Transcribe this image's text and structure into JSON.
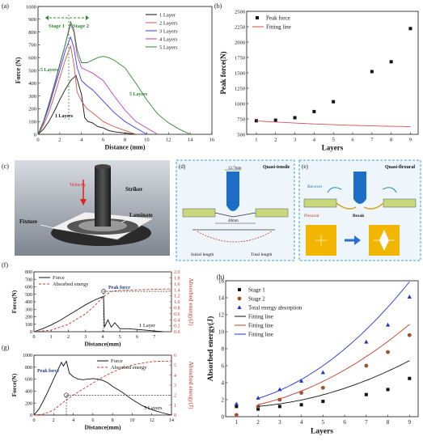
{
  "panel_labels": {
    "a": "(a)",
    "b": "(b)",
    "c": "(c)",
    "d": "(d)",
    "e": "(e)",
    "f": "(f)",
    "g": "(g)",
    "h": "(h)"
  },
  "chart_data": [
    {
      "id": "a",
      "type": "line",
      "xlabel": "Distance (mm)",
      "ylabel": "Force (N)",
      "xlim": [
        0,
        16
      ],
      "ylim": [
        0,
        1000
      ],
      "xticks": [
        0,
        2,
        4,
        6,
        8,
        10,
        12,
        14,
        16
      ],
      "yticks": [
        0,
        100,
        200,
        300,
        400,
        500,
        600,
        700,
        800,
        900,
        1000
      ],
      "legend_position": "top-right",
      "annotations": {
        "stage1": "Stage 1",
        "stage2": "Stage 2",
        "five_layers_left": "5 Layers",
        "five_layers_right": "5 Layers",
        "one_layer": "1 Layers"
      },
      "series": [
        {
          "name": "1 Layer",
          "color": "#111111",
          "x": [
            0,
            0.5,
            1,
            1.5,
            2,
            2.5,
            3,
            3.5,
            4,
            4.3,
            4.6,
            5,
            5.5,
            6,
            6.5,
            7,
            8,
            9
          ],
          "y": [
            0,
            40,
            100,
            180,
            270,
            350,
            420,
            460,
            310,
            130,
            100,
            90,
            60,
            50,
            30,
            20,
            10,
            0
          ]
        },
        {
          "name": "2 Layers",
          "color": "#d9534f",
          "x": [
            0,
            0.5,
            1,
            1.5,
            2,
            2.5,
            3,
            3.3,
            3.6,
            4,
            4.5,
            5,
            6,
            7,
            8,
            9
          ],
          "y": [
            0,
            70,
            170,
            300,
            440,
            580,
            690,
            550,
            330,
            260,
            200,
            170,
            100,
            60,
            30,
            0
          ]
        },
        {
          "name": "3 Layers",
          "color": "#3a3aff",
          "x": [
            0,
            0.5,
            1,
            1.5,
            2,
            2.5,
            3,
            3.3,
            3.6,
            4,
            4.5,
            5,
            6,
            7,
            8,
            9,
            10
          ],
          "y": [
            0,
            90,
            210,
            360,
            500,
            650,
            760,
            680,
            520,
            420,
            380,
            350,
            260,
            170,
            100,
            50,
            0
          ]
        },
        {
          "name": "4 Layers",
          "color": "#c040c0",
          "x": [
            0,
            0.5,
            1,
            1.5,
            2,
            2.5,
            3,
            3.3,
            3.6,
            4,
            4.5,
            5,
            6,
            7,
            8,
            9,
            10,
            11
          ],
          "y": [
            0,
            100,
            230,
            380,
            540,
            700,
            860,
            800,
            620,
            520,
            500,
            480,
            420,
            300,
            190,
            100,
            50,
            0
          ]
        },
        {
          "name": "5 Layers",
          "color": "#2a8a2a",
          "x": [
            0,
            0.5,
            1,
            1.5,
            2,
            2.5,
            3,
            3.3,
            3.6,
            4,
            4.5,
            5,
            5.5,
            6,
            6.5,
            7,
            8,
            9,
            10,
            11,
            12,
            13,
            14
          ],
          "y": [
            0,
            100,
            240,
            390,
            550,
            700,
            880,
            820,
            660,
            560,
            560,
            580,
            600,
            610,
            600,
            580,
            520,
            400,
            270,
            160,
            90,
            40,
            0
          ]
        }
      ]
    },
    {
      "id": "b",
      "type": "scatter",
      "xlabel": "Layers",
      "ylabel": "Peak force(N)",
      "xlim": [
        0.5,
        9.4
      ],
      "ylim": [
        500,
        2500
      ],
      "xticks": [
        1,
        2,
        3,
        4,
        5,
        6,
        7,
        8,
        9
      ],
      "yticks": [
        500,
        750,
        1000,
        1250,
        1500,
        1750,
        2000,
        2250,
        2500
      ],
      "legend_position": "top-left",
      "series": [
        {
          "name": "Peak force",
          "color": "#111111",
          "x": [
            1,
            2,
            3,
            4,
            5,
            7,
            8,
            9
          ],
          "y": [
            720,
            730,
            770,
            870,
            1030,
            1520,
            1680,
            2220
          ]
        },
        {
          "name": "Fitting line",
          "color": "#d9534f",
          "fit": [
            0.96,
            -21.1,
            738
          ]
        }
      ]
    },
    {
      "id": "f",
      "type": "line",
      "xlabel": "Distance(mm)",
      "ylabel": "Force(N)",
      "y2label": "Absorbed energy(J)",
      "xlim": [
        0,
        8
      ],
      "ylim": [
        0,
        800
      ],
      "y2lim": [
        0,
        2.0
      ],
      "xticks": [
        0,
        1,
        2,
        3,
        4,
        5,
        6,
        7
      ],
      "yticks": [
        0,
        100,
        200,
        300,
        400,
        500,
        600,
        700,
        800
      ],
      "y2ticks": [
        0.0,
        0.2,
        0.4,
        0.6,
        0.8,
        1.0,
        1.2,
        1.4,
        1.6,
        1.8,
        2.0
      ],
      "legend_position": "top-left",
      "annotations": {
        "peak": "Peak force",
        "layers": "1 Layer"
      },
      "series": [
        {
          "name": "Force",
          "color": "#111111",
          "x": [
            0,
            0.5,
            1,
            1.5,
            2,
            2.5,
            3,
            3.5,
            3.9,
            4.05,
            4.1,
            4.3,
            4.5,
            4.7,
            5,
            5.5,
            6,
            6.5,
            7,
            7.5
          ],
          "y": [
            0,
            40,
            90,
            150,
            220,
            290,
            360,
            420,
            460,
            470,
            60,
            160,
            60,
            120,
            40,
            40,
            30,
            20,
            10,
            0
          ]
        },
        {
          "name": "Absorbed energy",
          "color": "#c0392b",
          "axis": "y2",
          "x": [
            0,
            1,
            2,
            3,
            3.5,
            4,
            4.5,
            5,
            6,
            7,
            8
          ],
          "y": [
            0,
            0.05,
            0.25,
            0.6,
            0.85,
            1.15,
            1.35,
            1.38,
            1.4,
            1.42,
            1.43
          ]
        }
      ]
    },
    {
      "id": "g",
      "type": "line",
      "xlabel": "Distance(mm)",
      "ylabel": "Force(N)",
      "y2label": "Absorbed energy(J)",
      "xlim": [
        0,
        14
      ],
      "ylim": [
        0,
        1000
      ],
      "y2lim": [
        0,
        6
      ],
      "xticks": [
        0,
        2,
        4,
        6,
        8,
        10,
        12,
        14
      ],
      "yticks": [
        0,
        200,
        400,
        600,
        800,
        1000
      ],
      "y2ticks": [
        0,
        1,
        2,
        3,
        4,
        5,
        6
      ],
      "legend_position": "top-right",
      "annotations": {
        "peak": "Peak force",
        "layers": "5 Layers"
      },
      "series": [
        {
          "name": "Force",
          "color": "#111111",
          "x": [
            0,
            0.5,
            1,
            1.5,
            2,
            2.5,
            2.8,
            3,
            3.3,
            3.6,
            4,
            4.5,
            5,
            5.5,
            6,
            6.5,
            7,
            7.5,
            8,
            9,
            10,
            11,
            12,
            13,
            14
          ],
          "y": [
            0,
            100,
            250,
            420,
            600,
            780,
            880,
            820,
            900,
            700,
            640,
            600,
            590,
            600,
            610,
            600,
            580,
            540,
            480,
            380,
            260,
            160,
            90,
            40,
            0
          ]
        },
        {
          "name": "Absorbed energy",
          "color": "#c0392b",
          "axis": "y2",
          "x": [
            0,
            1,
            2,
            3,
            4,
            5,
            6,
            7,
            8,
            9,
            10,
            11,
            12,
            13,
            14
          ],
          "y": [
            0,
            0.1,
            0.5,
            1.3,
            2.0,
            2.6,
            3.2,
            3.8,
            4.3,
            4.7,
            5.0,
            5.2,
            5.35,
            5.4,
            5.42
          ]
        }
      ]
    },
    {
      "id": "h",
      "type": "scatter",
      "xlabel": "Layers",
      "ylabel": "Absorbed energy(J)",
      "xlim": [
        0.5,
        9.4
      ],
      "ylim": [
        0,
        16
      ],
      "xticks": [
        1,
        2,
        3,
        4,
        5,
        6,
        7,
        8,
        9
      ],
      "yticks": [
        0,
        2,
        4,
        6,
        8,
        10,
        12,
        14,
        16
      ],
      "legend_position": "top-left",
      "series": [
        {
          "name": "Stage 1",
          "marker": "square",
          "color": "#111111",
          "x": [
            1,
            2,
            3,
            4,
            5,
            7,
            8,
            9
          ],
          "y": [
            1.2,
            0.9,
            1.2,
            1.4,
            1.8,
            2.6,
            3.2,
            4.5
          ]
        },
        {
          "name": "Stage 2",
          "marker": "circle",
          "color": "#a0522d",
          "x": [
            1,
            2,
            3,
            4,
            5,
            7,
            8,
            9
          ],
          "y": [
            0.2,
            1.2,
            2.0,
            2.8,
            3.4,
            6.0,
            7.6,
            9.6
          ]
        },
        {
          "name": "Total energy absorption",
          "marker": "triangle",
          "color": "#2233cc",
          "x": [
            1,
            2,
            3,
            4,
            5,
            7,
            8,
            9
          ],
          "y": [
            1.5,
            2.2,
            3.2,
            4.2,
            5.2,
            8.8,
            10.8,
            14.1
          ]
        },
        {
          "name": "Fitting line",
          "color": "#111111",
          "fit": [
            0.079,
            -0.1,
            1.1
          ]
        },
        {
          "name": "Fitting line",
          "color": "#c0392b",
          "fit": [
            0.11,
            0.14,
            0.7
          ]
        },
        {
          "name": "Fitting line",
          "color": "#2233cc",
          "fit": [
            0.17,
            0.09,
            1.3
          ]
        }
      ]
    }
  ],
  "schematic": {
    "c": {
      "velocity": "Velocity",
      "striker": "Striker",
      "fixture": "Fixture",
      "laminate": "Laminate"
    },
    "d": {
      "title": "Quasi-tensile",
      "width_top": "12.7mm",
      "width_bottom": "40mm",
      "initial": "Initial length",
      "total": "Total length"
    },
    "e": {
      "title": "Quasi-flexural",
      "recover": "Recover",
      "flexural": "Flexural",
      "break": "Break"
    }
  }
}
